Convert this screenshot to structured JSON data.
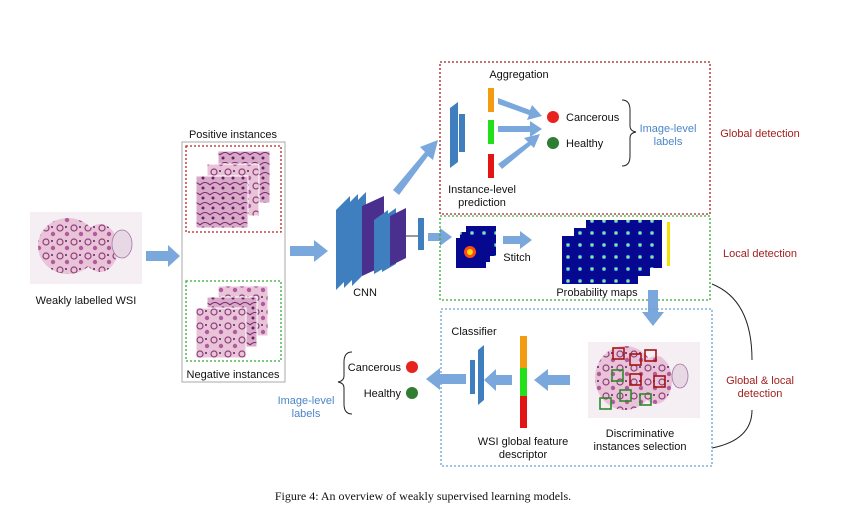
{
  "diagram": {
    "wsi_label": "Weakly labelled WSI",
    "positive_label": "Positive instances",
    "negative_label": "Negative instances",
    "cnn_label": "CNN",
    "aggregation_label": "Aggregation",
    "instance_level_line1": "Instance-level",
    "instance_level_line2": "prediction",
    "cancerous_label": "Cancerous",
    "healthy_label": "Healthy",
    "image_level_line1": "Image-level",
    "image_level_line2": "labels",
    "global_detection": "Global detection",
    "local_detection": "Local detection",
    "global_local_line1": "Global & local",
    "global_local_line2": "detection",
    "stitch_label": "Stitch",
    "probability_maps_label": "Probability maps",
    "classifier_label": "Classifier",
    "wsi_feature_line1": "WSI global feature",
    "wsi_feature_line2": "descriptor",
    "discriminative_line1": "Discriminative",
    "discriminative_line2": "instances selection",
    "caption": "Figure 4: An overview of weakly supervised learning models.",
    "colors": {
      "arrow": "#7aa8dc",
      "cnn_blue": "#3f7fbf",
      "cnn_purple": "#4b2f8f",
      "red_dot": "#e8221c",
      "green_dot": "#2e7d32",
      "orange": "#f39c12",
      "green_bar": "#22e01a",
      "red_bar": "#e31414"
    }
  }
}
